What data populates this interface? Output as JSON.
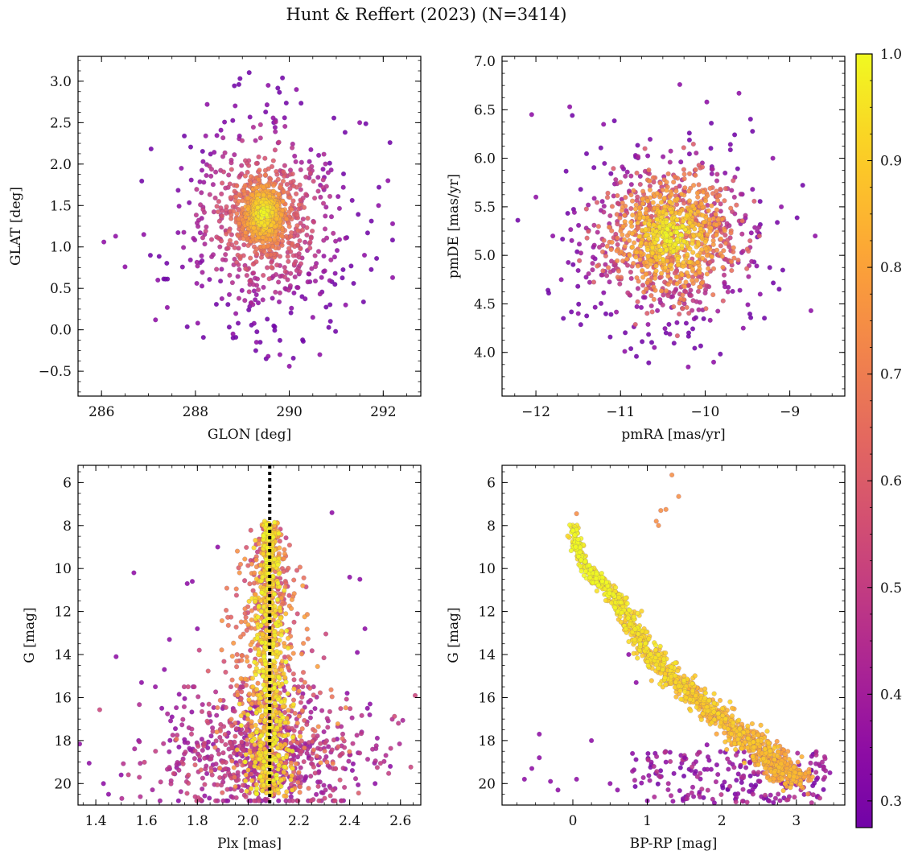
{
  "title": "Hunt & Reffert (2023) (N=3414)",
  "colors": {
    "background": "#ffffff",
    "axes": "#000000",
    "marker_edge": "#6b4a9a",
    "vline": "#000000"
  },
  "colorbar": {
    "colormap": "plasma",
    "vmin": 0.275,
    "vmax": 1.0,
    "ticks": [
      0.3,
      0.4,
      0.5,
      0.6,
      0.7,
      0.8,
      0.9,
      1.0
    ],
    "tick_labels": [
      "0.3",
      "0.4",
      "0.5",
      "0.6",
      "0.7",
      "0.8",
      "0.9",
      "1.0"
    ]
  },
  "chart_data": [
    {
      "type": "scatter",
      "panel": "top-left",
      "xlabel": "GLON [deg]",
      "ylabel": "GLAT [deg]",
      "xlim": [
        285.5,
        292.8
      ],
      "ylim": [
        -0.8,
        3.3
      ],
      "xticks": [
        286,
        288,
        290,
        292
      ],
      "xtick_labels": [
        "286",
        "288",
        "290",
        "292"
      ],
      "yticks": [
        -0.5,
        0.0,
        0.5,
        1.0,
        1.5,
        2.0,
        2.5,
        3.0
      ],
      "ytick_labels": [
        "−0.5",
        "0.0",
        "0.5",
        "1.0",
        "1.5",
        "2.0",
        "2.5",
        "3.0"
      ],
      "invert_y": false,
      "core": {
        "center": [
          289.45,
          1.4
        ],
        "spread": [
          0.25,
          0.2
        ]
      },
      "halo": {
        "center": [
          289.5,
          1.3
        ],
        "spread": [
          0.85,
          0.6
        ]
      },
      "points": [
        [
          286.05,
          1.06
        ],
        [
          286.3,
          1.13
        ],
        [
          286.5,
          0.76
        ],
        [
          287.15,
          0.12
        ],
        [
          287.4,
          0.27
        ],
        [
          288.05,
          0.08
        ],
        [
          289.55,
          2.95
        ],
        [
          290.15,
          2.9
        ],
        [
          289.8,
          -0.3
        ],
        [
          290.0,
          -0.44
        ],
        [
          289.55,
          -0.32
        ],
        [
          292.2,
          0.63
        ],
        [
          292.1,
          1.8
        ],
        [
          291.5,
          2.5
        ],
        [
          288.25,
          2.72
        ],
        [
          286.9,
          1.15
        ],
        [
          287.7,
          1.95
        ],
        [
          291.9,
          1.5
        ],
        [
          292.2,
          1.28
        ],
        [
          291.2,
          0.3
        ],
        [
          288.8,
          -0.05
        ],
        [
          290.5,
          0.15
        ],
        [
          289.3,
          -0.15
        ],
        [
          290.65,
          -0.3
        ],
        [
          287.2,
          0.6
        ],
        [
          291.6,
          0.9
        ]
      ]
    },
    {
      "type": "scatter",
      "panel": "top-right",
      "xlabel": "pmRA [mas/yr]",
      "ylabel": "pmDE [mas/yr]",
      "xlim": [
        -12.4,
        -8.35
      ],
      "ylim": [
        3.55,
        7.05
      ],
      "xticks": [
        -12,
        -11,
        -10,
        -9
      ],
      "xtick_labels": [
        "−12",
        "−11",
        "−10",
        "−9"
      ],
      "yticks": [
        4.0,
        4.5,
        5.0,
        5.5,
        6.0,
        6.5,
        7.0
      ],
      "ytick_labels": [
        "4.0",
        "4.5",
        "5.0",
        "5.5",
        "6.0",
        "6.5",
        "7.0"
      ],
      "invert_y": false,
      "core": {
        "center": [
          -10.4,
          5.2
        ],
        "spread": [
          0.35,
          0.3
        ]
      },
      "halo": {
        "center": [
          -10.45,
          5.15
        ],
        "spread": [
          0.55,
          0.45
        ]
      },
      "points": [
        [
          -12.05,
          6.45
        ],
        [
          -11.6,
          6.53
        ],
        [
          -10.3,
          6.76
        ],
        [
          -9.6,
          6.67
        ],
        [
          -9.98,
          6.58
        ],
        [
          -8.7,
          5.2
        ],
        [
          -8.75,
          4.43
        ],
        [
          -10.95,
          4.01
        ],
        [
          -10.2,
          3.85
        ],
        [
          -9.9,
          3.9
        ],
        [
          -11.7,
          4.75
        ],
        [
          -11.5,
          4.4
        ],
        [
          -12.0,
          5.6
        ],
        [
          -9.2,
          6.0
        ],
        [
          -9.1,
          5.5
        ],
        [
          -9.35,
          4.6
        ],
        [
          -11.2,
          6.35
        ],
        [
          -10.6,
          4.05
        ],
        [
          -9.55,
          4.25
        ],
        [
          -11.8,
          5.2
        ]
      ]
    },
    {
      "type": "scatter",
      "panel": "bottom-left",
      "xlabel": "Plx [mas]",
      "ylabel": "G [mag]",
      "xlim": [
        1.33,
        2.68
      ],
      "ylim": [
        21.0,
        5.2
      ],
      "xticks": [
        1.4,
        1.6,
        1.8,
        2.0,
        2.2,
        2.4,
        2.6
      ],
      "xtick_labels": [
        "1.4",
        "1.6",
        "1.8",
        "2.0",
        "2.2",
        "2.4",
        "2.6"
      ],
      "yticks": [
        6,
        8,
        10,
        12,
        14,
        16,
        18,
        20
      ],
      "ytick_labels": [
        "6",
        "8",
        "10",
        "12",
        "14",
        "16",
        "18",
        "20"
      ],
      "invert_y": true,
      "vline": {
        "x": 2.085,
        "style": "dotted"
      },
      "points": [
        [
          1.55,
          10.2
        ],
        [
          1.48,
          14.1
        ],
        [
          1.58,
          15.3
        ],
        [
          1.67,
          14.7
        ],
        [
          1.66,
          16.5
        ],
        [
          1.69,
          13.3
        ],
        [
          1.8,
          12.8
        ],
        [
          1.76,
          10.7
        ],
        [
          1.78,
          10.6
        ],
        [
          1.88,
          9.0
        ],
        [
          2.33,
          7.4
        ],
        [
          2.4,
          10.4
        ],
        [
          2.44,
          10.5
        ],
        [
          2.46,
          12.8
        ],
        [
          2.43,
          13.9
        ],
        [
          2.48,
          16.3
        ],
        [
          2.47,
          16.5
        ],
        [
          2.56,
          19.2
        ],
        [
          1.43,
          20.0
        ],
        [
          1.45,
          20.5
        ],
        [
          2.5,
          20.0
        ],
        [
          1.5,
          19.6
        ],
        [
          1.7,
          16.9
        ],
        [
          2.39,
          15.8
        ]
      ]
    },
    {
      "type": "scatter",
      "panel": "bottom-right",
      "xlabel": "BP-RP [mag]",
      "ylabel": "G [mag]",
      "xlim": [
        -0.95,
        3.65
      ],
      "ylim": [
        21.0,
        5.2
      ],
      "xticks": [
        0,
        1,
        2,
        3
      ],
      "xtick_labels": [
        "0",
        "1",
        "2",
        "3"
      ],
      "yticks": [
        6,
        8,
        10,
        12,
        14,
        16,
        18,
        20
      ],
      "ytick_labels": [
        "6",
        "8",
        "10",
        "12",
        "14",
        "16",
        "18",
        "20"
      ],
      "invert_y": true,
      "main_sequence": [
        [
          0.0,
          7.9
        ],
        [
          0.05,
          8.8
        ],
        [
          0.15,
          9.8
        ],
        [
          0.35,
          10.6
        ],
        [
          0.6,
          11.5
        ],
        [
          0.8,
          12.6
        ],
        [
          1.0,
          13.8
        ],
        [
          1.3,
          15.0
        ],
        [
          1.65,
          16.0
        ],
        [
          2.0,
          17.0
        ],
        [
          2.35,
          17.9
        ],
        [
          2.6,
          18.7
        ],
        [
          2.85,
          19.4
        ],
        [
          3.0,
          19.9
        ]
      ],
      "points": [
        [
          1.33,
          5.65
        ],
        [
          1.42,
          6.65
        ],
        [
          1.12,
          7.8
        ],
        [
          1.18,
          7.3
        ],
        [
          1.25,
          7.25
        ],
        [
          1.15,
          8.0
        ],
        [
          0.05,
          7.45
        ],
        [
          -0.45,
          17.7
        ],
        [
          -0.45,
          18.8
        ],
        [
          -0.55,
          19.3
        ],
        [
          -0.65,
          19.8
        ],
        [
          -0.3,
          19.9
        ],
        [
          -0.2,
          20.3
        ],
        [
          0.05,
          19.8
        ],
        [
          0.5,
          20.0
        ],
        [
          0.25,
          18.0
        ],
        [
          0.8,
          18.6
        ],
        [
          0.75,
          14.0
        ],
        [
          0.85,
          15.3
        ],
        [
          1.25,
          19.0
        ],
        [
          1.5,
          18.8
        ],
        [
          1.8,
          18.2
        ],
        [
          3.45,
          19.5
        ],
        [
          1.0,
          20.8
        ],
        [
          1.7,
          20.4
        ],
        [
          0.6,
          20.3
        ],
        [
          1.9,
          20.9
        ]
      ]
    }
  ]
}
